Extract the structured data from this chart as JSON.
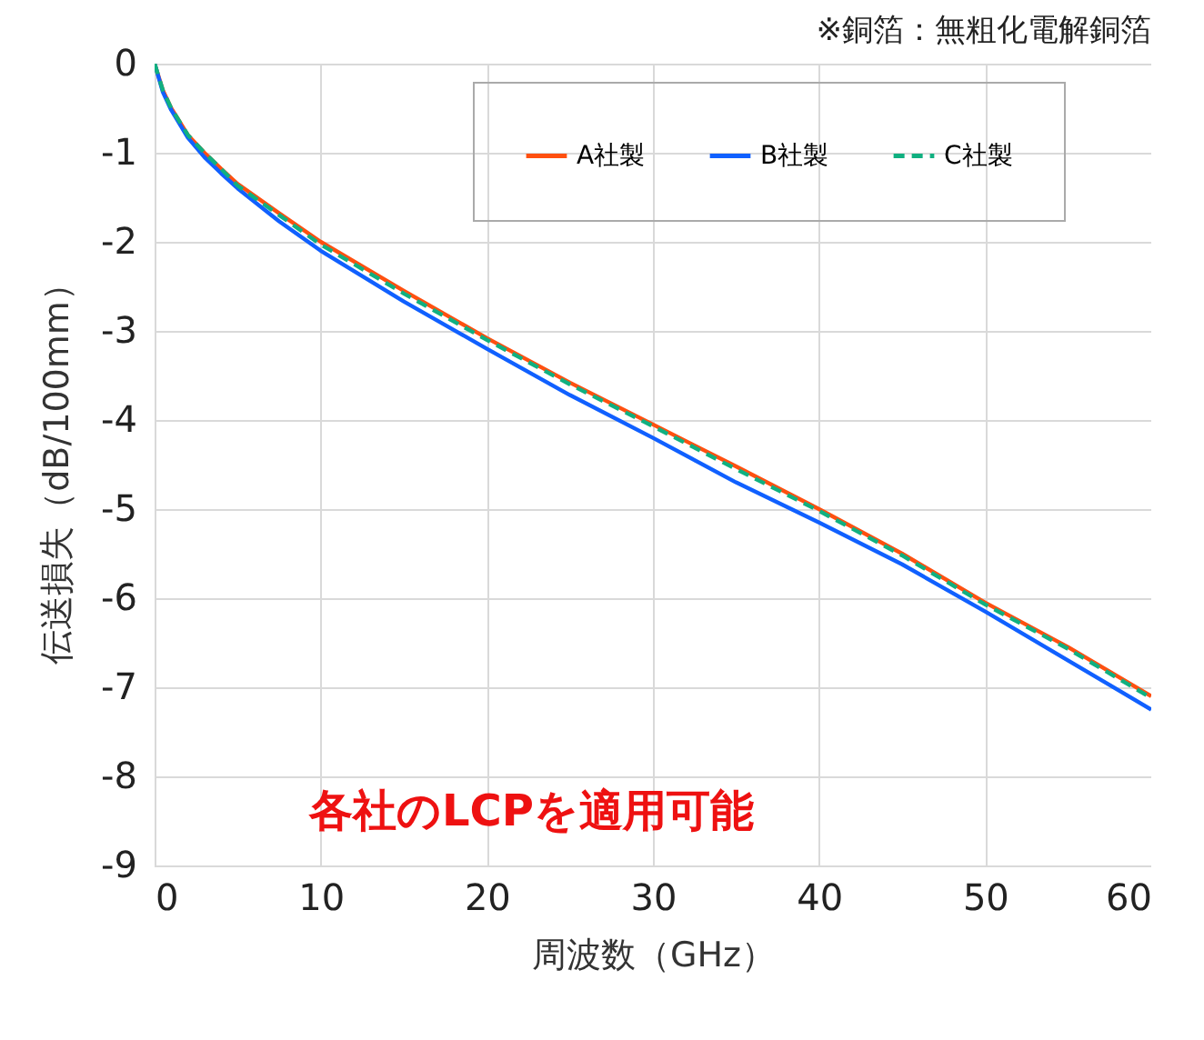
{
  "chart_data": {
    "type": "line",
    "xlabel": "周波数（GHz）",
    "ylabel": "伝送損失（dB/100mm）",
    "annotations": [
      "※銅箔：無粗化電解銅箔",
      "各社のLCPを適用可能"
    ],
    "x": [
      0,
      0.5,
      1,
      2,
      3,
      4,
      5,
      7.5,
      10,
      15,
      20,
      25,
      30,
      35,
      40,
      45,
      50,
      55,
      60
    ],
    "series": [
      {
        "name": "A社製",
        "color": "#ff5010",
        "values": [
          0,
          -0.3,
          -0.5,
          -0.8,
          -1.0,
          -1.18,
          -1.35,
          -1.68,
          -2.0,
          -2.55,
          -3.08,
          -3.58,
          -4.05,
          -4.52,
          -5.0,
          -5.5,
          -6.05,
          -6.55,
          -7.1
        ]
      },
      {
        "name": "B社製",
        "color": "#1060ff",
        "values": [
          0,
          -0.32,
          -0.52,
          -0.83,
          -1.05,
          -1.23,
          -1.4,
          -1.77,
          -2.1,
          -2.67,
          -3.2,
          -3.72,
          -4.2,
          -4.7,
          -5.15,
          -5.62,
          -6.15,
          -6.7,
          -7.25
        ]
      },
      {
        "name": "C社製",
        "color": "#10b080",
        "line_style": "dashed",
        "values": [
          0,
          -0.3,
          -0.5,
          -0.8,
          -1.0,
          -1.18,
          -1.37,
          -1.7,
          -2.03,
          -2.58,
          -3.1,
          -3.6,
          -4.07,
          -4.55,
          -5.02,
          -5.52,
          -6.07,
          -6.57,
          -7.12
        ]
      }
    ],
    "xlim": [
      0,
      60
    ],
    "xticks": [
      0,
      10,
      20,
      30,
      40,
      50,
      60
    ],
    "ylim": [
      -9,
      0
    ],
    "yticks": [
      0,
      -1,
      -2,
      -3,
      -4,
      -5,
      -6,
      -7,
      -8,
      -9
    ],
    "grid": true,
    "legend": "top right",
    "line_style": "solid",
    "marker": "none"
  }
}
